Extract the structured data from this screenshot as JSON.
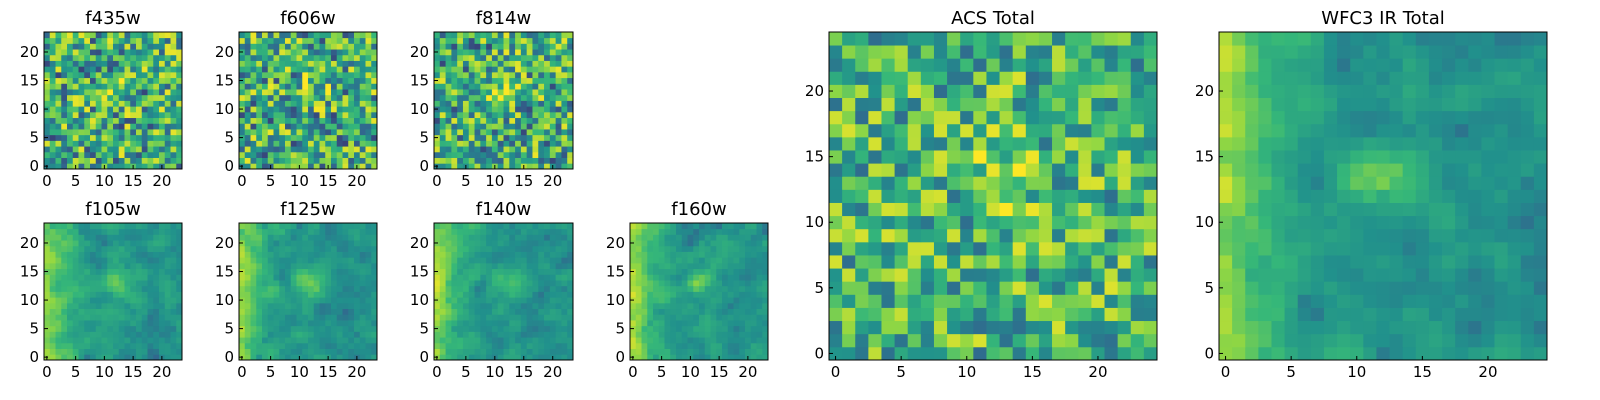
{
  "figure": {
    "colormap": [
      "#440154",
      "#31688e",
      "#21918c",
      "#35b779",
      "#90d743",
      "#fde725"
    ]
  },
  "chart_data": [
    {
      "type": "heatmap",
      "title": "f435w",
      "seed": 11,
      "mode": "noisy",
      "grid": [
        24,
        24
      ],
      "xlim": [
        -0.5,
        23.5
      ],
      "ylim": [
        -0.5,
        23.5
      ],
      "xticks": [
        0,
        5,
        10,
        15,
        20
      ],
      "yticks": [
        0,
        5,
        10,
        15,
        20
      ]
    },
    {
      "type": "heatmap",
      "title": "f606w",
      "seed": 22,
      "mode": "noisy",
      "grid": [
        24,
        24
      ],
      "xlim": [
        -0.5,
        23.5
      ],
      "ylim": [
        -0.5,
        23.5
      ],
      "xticks": [
        0,
        5,
        10,
        15,
        20
      ],
      "yticks": [
        0,
        5,
        10,
        15,
        20
      ]
    },
    {
      "type": "heatmap",
      "title": "f814w",
      "seed": 33,
      "mode": "noisy",
      "grid": [
        24,
        24
      ],
      "xlim": [
        -0.5,
        23.5
      ],
      "ylim": [
        -0.5,
        23.5
      ],
      "xticks": [
        0,
        5,
        10,
        15,
        20
      ],
      "yticks": [
        0,
        5,
        10,
        15,
        20
      ]
    },
    {
      "type": "heatmap",
      "title": "f105w",
      "seed": 44,
      "mode": "ir",
      "grid": [
        24,
        24
      ],
      "xlim": [
        -0.5,
        23.5
      ],
      "ylim": [
        -0.5,
        23.5
      ],
      "xticks": [
        0,
        5,
        10,
        15,
        20
      ],
      "yticks": [
        0,
        5,
        10,
        15,
        20
      ]
    },
    {
      "type": "heatmap",
      "title": "f125w",
      "seed": 55,
      "mode": "ir",
      "grid": [
        24,
        24
      ],
      "xlim": [
        -0.5,
        23.5
      ],
      "ylim": [
        -0.5,
        23.5
      ],
      "xticks": [
        0,
        5,
        10,
        15,
        20
      ],
      "yticks": [
        0,
        5,
        10,
        15,
        20
      ]
    },
    {
      "type": "heatmap",
      "title": "f140w",
      "seed": 66,
      "mode": "ir",
      "grid": [
        24,
        24
      ],
      "xlim": [
        -0.5,
        23.5
      ],
      "ylim": [
        -0.5,
        23.5
      ],
      "xticks": [
        0,
        5,
        10,
        15,
        20
      ],
      "yticks": [
        0,
        5,
        10,
        15,
        20
      ]
    },
    {
      "type": "heatmap",
      "title": "f160w",
      "seed": 77,
      "mode": "ir",
      "grid": [
        24,
        24
      ],
      "xlim": [
        -0.5,
        23.5
      ],
      "ylim": [
        -0.5,
        23.5
      ],
      "xticks": [
        0,
        5,
        10,
        15,
        20
      ],
      "yticks": [
        0,
        5,
        10,
        15,
        20
      ]
    },
    {
      "type": "heatmap",
      "title": "ACS Total",
      "seed": 88,
      "mode": "acs",
      "grid": [
        25,
        25
      ],
      "xlim": [
        -0.5,
        24.5
      ],
      "ylim": [
        -0.5,
        24.5
      ],
      "xticks": [
        0,
        5,
        10,
        15,
        20
      ],
      "yticks": [
        0,
        5,
        10,
        15,
        20
      ]
    },
    {
      "type": "heatmap",
      "title": "WFC3 IR Total",
      "seed": 99,
      "mode": "wfc3",
      "grid": [
        25,
        25
      ],
      "xlim": [
        -0.5,
        24.5
      ],
      "ylim": [
        -0.5,
        24.5
      ],
      "xticks": [
        0,
        5,
        10,
        15,
        20
      ],
      "yticks": [
        0,
        5,
        10,
        15,
        20
      ]
    }
  ]
}
